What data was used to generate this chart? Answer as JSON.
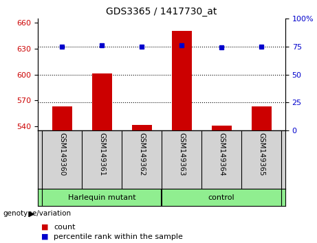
{
  "title": "GDS3365 / 1417730_at",
  "samples": [
    "GSM149360",
    "GSM149361",
    "GSM149362",
    "GSM149363",
    "GSM149364",
    "GSM149365"
  ],
  "count_values": [
    563,
    601,
    542,
    650,
    541,
    563
  ],
  "percentile_values": [
    75,
    76,
    75,
    76,
    74,
    75
  ],
  "ylim_left": [
    535,
    665
  ],
  "ylim_right": [
    0,
    100
  ],
  "yticks_left": [
    540,
    570,
    600,
    630,
    660
  ],
  "yticks_right": [
    0,
    25,
    50,
    75,
    100
  ],
  "ytick_labels_right": [
    "0",
    "25",
    "50",
    "75",
    "100%"
  ],
  "bar_color": "#cc0000",
  "dot_color": "#0000cc",
  "groups": [
    {
      "label": "Harlequin mutant",
      "indices": [
        0,
        1,
        2
      ]
    },
    {
      "label": "control",
      "indices": [
        3,
        4,
        5
      ]
    }
  ],
  "genotype_label": "genotype/variation",
  "legend_count": "count",
  "legend_percentile": "percentile rank within the sample",
  "bar_base": 535,
  "tick_label_color_left": "#cc0000",
  "tick_label_color_right": "#0000cc",
  "xlabel_area_color": "#d3d3d3",
  "group_area_color": "#90ee90",
  "dotted_line_pcts": [
    25,
    50,
    75
  ],
  "title_fontsize": 10
}
